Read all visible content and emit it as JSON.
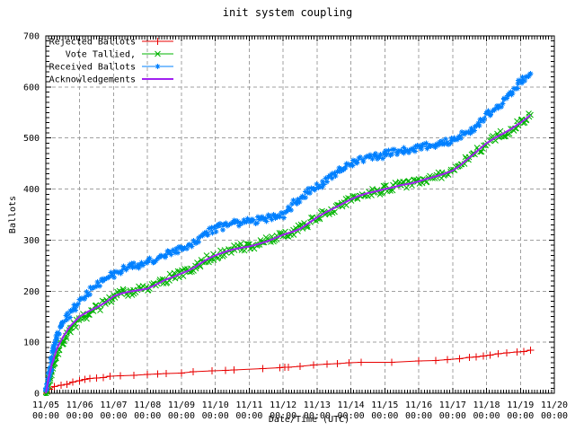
{
  "title": "init system coupling",
  "axes": {
    "ylabel": "Ballots",
    "xlabel": "Date/Time (UTC)",
    "y_ticks": [
      0,
      100,
      200,
      300,
      400,
      500,
      600,
      700
    ],
    "x_ticks": [
      {
        "date": "11/05",
        "time": "00:00"
      },
      {
        "date": "11/06",
        "time": "00:00"
      },
      {
        "date": "11/07",
        "time": "00:00"
      },
      {
        "date": "11/08",
        "time": "00:00"
      },
      {
        "date": "11/09",
        "time": "00:00"
      },
      {
        "date": "11/10",
        "time": "00:00"
      },
      {
        "date": "11/11",
        "time": "00:00"
      },
      {
        "date": "11/12",
        "time": "00:00"
      },
      {
        "date": "11/13",
        "time": "00:00"
      },
      {
        "date": "11/14",
        "time": "00:00"
      },
      {
        "date": "11/15",
        "time": "00:00"
      },
      {
        "date": "11/16",
        "time": "00:00"
      },
      {
        "date": "11/17",
        "time": "00:00"
      },
      {
        "date": "11/18",
        "time": "00:00"
      },
      {
        "date": "11/19",
        "time": "00:00"
      },
      {
        "date": "11/20",
        "time": "00:00"
      }
    ]
  },
  "legend": [
    {
      "label": "Rejected Ballots"
    },
    {
      "label": "Vote Tallied,"
    },
    {
      "label": "Received Ballots"
    },
    {
      "label": "Acknowledgements"
    }
  ],
  "colors": {
    "rejected": "#e80000",
    "tallied": "#00b400",
    "received": "#0080ff",
    "acknowledgements": "#a020f0",
    "grid": "#a0a0a0",
    "border": "#000000"
  },
  "chart_data": {
    "type": "line",
    "title": "init system coupling",
    "xlabel": "Date/Time (UTC)",
    "ylabel": "Ballots",
    "x_unit": "days since 11/05 00:00 UTC",
    "xlim": [
      0,
      15
    ],
    "ylim": [
      0,
      700
    ],
    "grid": true,
    "legend_position": "top-left",
    "series": [
      {
        "name": "Rejected Ballots",
        "color": "#e80000",
        "marker": "plus",
        "noise": 0,
        "marker_mode": "points",
        "points": [
          [
            0,
            0
          ],
          [
            0.1,
            8
          ],
          [
            0.25,
            13
          ],
          [
            0.45,
            16
          ],
          [
            0.62,
            18
          ],
          [
            0.8,
            22
          ],
          [
            1.0,
            25
          ],
          [
            1.15,
            27
          ],
          [
            1.3,
            29
          ],
          [
            1.5,
            30
          ],
          [
            1.7,
            31
          ],
          [
            1.9,
            33
          ],
          [
            2.2,
            34
          ],
          [
            2.6,
            35
          ],
          [
            3.0,
            37
          ],
          [
            3.3,
            38
          ],
          [
            3.55,
            39
          ],
          [
            4.0,
            40
          ],
          [
            4.35,
            42
          ],
          [
            4.9,
            44
          ],
          [
            5.3,
            45
          ],
          [
            5.55,
            46
          ],
          [
            6.4,
            48
          ],
          [
            6.9,
            50
          ],
          [
            7.05,
            51
          ],
          [
            7.15,
            51
          ],
          [
            7.5,
            53
          ],
          [
            7.9,
            55
          ],
          [
            8.3,
            57
          ],
          [
            8.6,
            58
          ],
          [
            8.95,
            60
          ],
          [
            9.3,
            61
          ],
          [
            10.2,
            61
          ],
          [
            11.0,
            63
          ],
          [
            11.5,
            64
          ],
          [
            11.85,
            66
          ],
          [
            12.2,
            68
          ],
          [
            12.5,
            70
          ],
          [
            12.7,
            71
          ],
          [
            12.9,
            73
          ],
          [
            13.1,
            75
          ],
          [
            13.35,
            77
          ],
          [
            13.6,
            79
          ],
          [
            13.9,
            81
          ],
          [
            14.1,
            82
          ],
          [
            14.3,
            84
          ]
        ]
      },
      {
        "name": "Vote Tallied,",
        "color": "#00b400",
        "marker": "cross",
        "noise": 8,
        "marker_mode": "band",
        "points": [
          [
            0,
            0
          ],
          [
            0.08,
            18
          ],
          [
            0.17,
            42
          ],
          [
            0.25,
            62
          ],
          [
            0.33,
            78
          ],
          [
            0.5,
            100
          ],
          [
            0.7,
            122
          ],
          [
            1,
            145
          ],
          [
            1.25,
            156
          ],
          [
            1.5,
            166
          ],
          [
            1.75,
            178
          ],
          [
            2,
            190
          ],
          [
            2.25,
            196
          ],
          [
            2.5,
            200
          ],
          [
            2.75,
            202
          ],
          [
            3,
            205
          ],
          [
            3.25,
            213
          ],
          [
            3.5,
            222
          ],
          [
            3.75,
            228
          ],
          [
            4,
            235
          ],
          [
            4.2,
            240
          ],
          [
            4.4,
            247
          ],
          [
            4.6,
            256
          ],
          [
            4.8,
            264
          ],
          [
            5,
            270
          ],
          [
            5.25,
            276
          ],
          [
            5.5,
            281
          ],
          [
            5.75,
            285
          ],
          [
            6,
            288
          ],
          [
            6.25,
            292
          ],
          [
            6.5,
            297
          ],
          [
            6.75,
            303
          ],
          [
            7,
            310
          ],
          [
            7.25,
            316
          ],
          [
            7.5,
            322
          ],
          [
            7.75,
            333
          ],
          [
            8,
            345
          ],
          [
            8.25,
            354
          ],
          [
            8.5,
            362
          ],
          [
            8.75,
            371
          ],
          [
            9,
            380
          ],
          [
            9.25,
            387
          ],
          [
            9.5,
            392
          ],
          [
            9.75,
            396
          ],
          [
            10,
            400
          ],
          [
            10.25,
            404
          ],
          [
            10.5,
            408
          ],
          [
            10.75,
            411
          ],
          [
            11,
            415
          ],
          [
            11.25,
            420
          ],
          [
            11.5,
            425
          ],
          [
            11.75,
            430
          ],
          [
            12,
            436
          ],
          [
            12.25,
            448
          ],
          [
            12.5,
            462
          ],
          [
            12.75,
            476
          ],
          [
            13,
            490
          ],
          [
            13.25,
            500
          ],
          [
            13.5,
            509
          ],
          [
            13.75,
            519
          ],
          [
            14,
            530
          ],
          [
            14.15,
            537
          ],
          [
            14.3,
            545
          ]
        ]
      },
      {
        "name": "Received Ballots",
        "color": "#0080ff",
        "marker": "star",
        "noise": 7,
        "marker_mode": "band",
        "points": [
          [
            0,
            0
          ],
          [
            0.08,
            25
          ],
          [
            0.17,
            62
          ],
          [
            0.25,
            90
          ],
          [
            0.33,
            112
          ],
          [
            0.5,
            140
          ],
          [
            0.7,
            155
          ],
          [
            1,
            178
          ],
          [
            1.25,
            196
          ],
          [
            1.5,
            212
          ],
          [
            1.75,
            225
          ],
          [
            2,
            234
          ],
          [
            2.25,
            242
          ],
          [
            2.5,
            248
          ],
          [
            2.75,
            252
          ],
          [
            3,
            256
          ],
          [
            3.25,
            262
          ],
          [
            3.5,
            270
          ],
          [
            3.75,
            277
          ],
          [
            4,
            283
          ],
          [
            4.2,
            290
          ],
          [
            4.4,
            296
          ],
          [
            4.6,
            308
          ],
          [
            4.8,
            316
          ],
          [
            5,
            322
          ],
          [
            5.25,
            327
          ],
          [
            5.5,
            331
          ],
          [
            5.75,
            334
          ],
          [
            6,
            337
          ],
          [
            6.25,
            340
          ],
          [
            6.5,
            343
          ],
          [
            6.75,
            346
          ],
          [
            7,
            350
          ],
          [
            7.2,
            362
          ],
          [
            7.4,
            377
          ],
          [
            7.6,
            388
          ],
          [
            7.8,
            396
          ],
          [
            8,
            405
          ],
          [
            8.25,
            415
          ],
          [
            8.5,
            430
          ],
          [
            8.75,
            442
          ],
          [
            9,
            450
          ],
          [
            9.25,
            457
          ],
          [
            9.5,
            462
          ],
          [
            9.75,
            465
          ],
          [
            10,
            468
          ],
          [
            10.25,
            471
          ],
          [
            10.5,
            474
          ],
          [
            10.75,
            477
          ],
          [
            11,
            480
          ],
          [
            11.25,
            484
          ],
          [
            11.5,
            488
          ],
          [
            11.75,
            492
          ],
          [
            12,
            497
          ],
          [
            12.25,
            505
          ],
          [
            12.5,
            514
          ],
          [
            12.75,
            525
          ],
          [
            13,
            545
          ],
          [
            13.25,
            558
          ],
          [
            13.5,
            572
          ],
          [
            13.75,
            588
          ],
          [
            14,
            610
          ],
          [
            14.15,
            618
          ],
          [
            14.3,
            626
          ]
        ]
      },
      {
        "name": "Acknowledgements",
        "color": "#a020f0",
        "marker": "none",
        "noise": 0,
        "marker_mode": "none",
        "points": [
          [
            0,
            0
          ],
          [
            0.08,
            30
          ],
          [
            0.17,
            55
          ],
          [
            0.25,
            72
          ],
          [
            0.33,
            88
          ],
          [
            0.5,
            110
          ],
          [
            0.7,
            130
          ],
          [
            1,
            150
          ],
          [
            1.25,
            160
          ],
          [
            1.5,
            168
          ],
          [
            1.75,
            178
          ],
          [
            2,
            190
          ],
          [
            2.25,
            196
          ],
          [
            2.5,
            200
          ],
          [
            2.75,
            202
          ],
          [
            3,
            205
          ],
          [
            3.25,
            213
          ],
          [
            3.5,
            222
          ],
          [
            3.75,
            228
          ],
          [
            4,
            235
          ],
          [
            4.2,
            240
          ],
          [
            4.4,
            247
          ],
          [
            4.6,
            256
          ],
          [
            4.8,
            264
          ],
          [
            5,
            270
          ],
          [
            5.25,
            276
          ],
          [
            5.5,
            281
          ],
          [
            5.75,
            285
          ],
          [
            6,
            288
          ],
          [
            6.25,
            292
          ],
          [
            6.5,
            297
          ],
          [
            6.75,
            303
          ],
          [
            7,
            310
          ],
          [
            7.25,
            316
          ],
          [
            7.5,
            322
          ],
          [
            7.75,
            333
          ],
          [
            8,
            345
          ],
          [
            8.25,
            354
          ],
          [
            8.5,
            362
          ],
          [
            8.75,
            371
          ],
          [
            9,
            380
          ],
          [
            9.25,
            387
          ],
          [
            9.5,
            392
          ],
          [
            9.75,
            396
          ],
          [
            10,
            400
          ],
          [
            10.25,
            404
          ],
          [
            10.5,
            408
          ],
          [
            10.75,
            411
          ],
          [
            11,
            415
          ],
          [
            11.25,
            420
          ],
          [
            11.5,
            425
          ],
          [
            11.75,
            430
          ],
          [
            12,
            436
          ],
          [
            12.25,
            448
          ],
          [
            12.5,
            462
          ],
          [
            12.75,
            476
          ],
          [
            13,
            490
          ],
          [
            13.25,
            500
          ],
          [
            13.5,
            509
          ],
          [
            13.75,
            519
          ],
          [
            14,
            530
          ],
          [
            14.15,
            537
          ],
          [
            14.3,
            545
          ]
        ]
      }
    ]
  }
}
